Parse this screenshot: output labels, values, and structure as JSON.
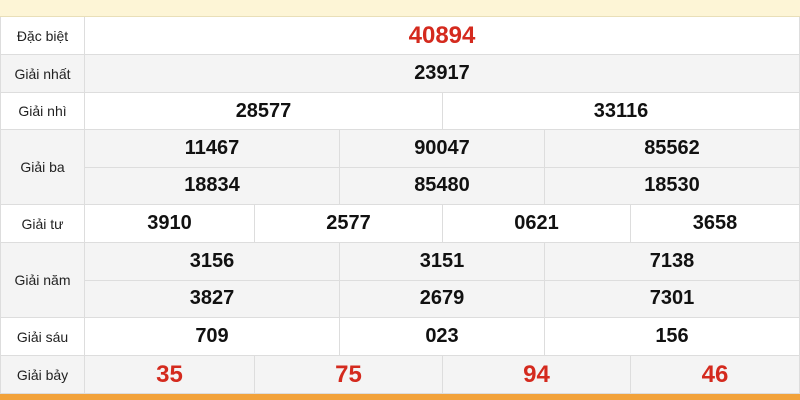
{
  "table": {
    "rows": [
      {
        "label": "Đặc biệt",
        "lines": [
          [
            "40894"
          ]
        ]
      },
      {
        "label": "Giải nhất",
        "lines": [
          [
            "23917"
          ]
        ]
      },
      {
        "label": "Giải nhì",
        "lines": [
          [
            "28577",
            "33116"
          ]
        ]
      },
      {
        "label": "Giải ba",
        "lines": [
          [
            "11467",
            "90047",
            "85562"
          ],
          [
            "18834",
            "85480",
            "18530"
          ]
        ]
      },
      {
        "label": "Giải tư",
        "lines": [
          [
            "3910",
            "2577",
            "0621",
            "3658"
          ]
        ]
      },
      {
        "label": "Giải năm",
        "lines": [
          [
            "3156",
            "3151",
            "7138"
          ],
          [
            "3827",
            "2679",
            "7301"
          ]
        ]
      },
      {
        "label": "Giải sáu",
        "lines": [
          [
            "709",
            "023",
            "156"
          ]
        ]
      },
      {
        "label": "Giải bảy",
        "lines": [
          [
            "35",
            "75",
            "94",
            "46"
          ]
        ]
      }
    ]
  }
}
